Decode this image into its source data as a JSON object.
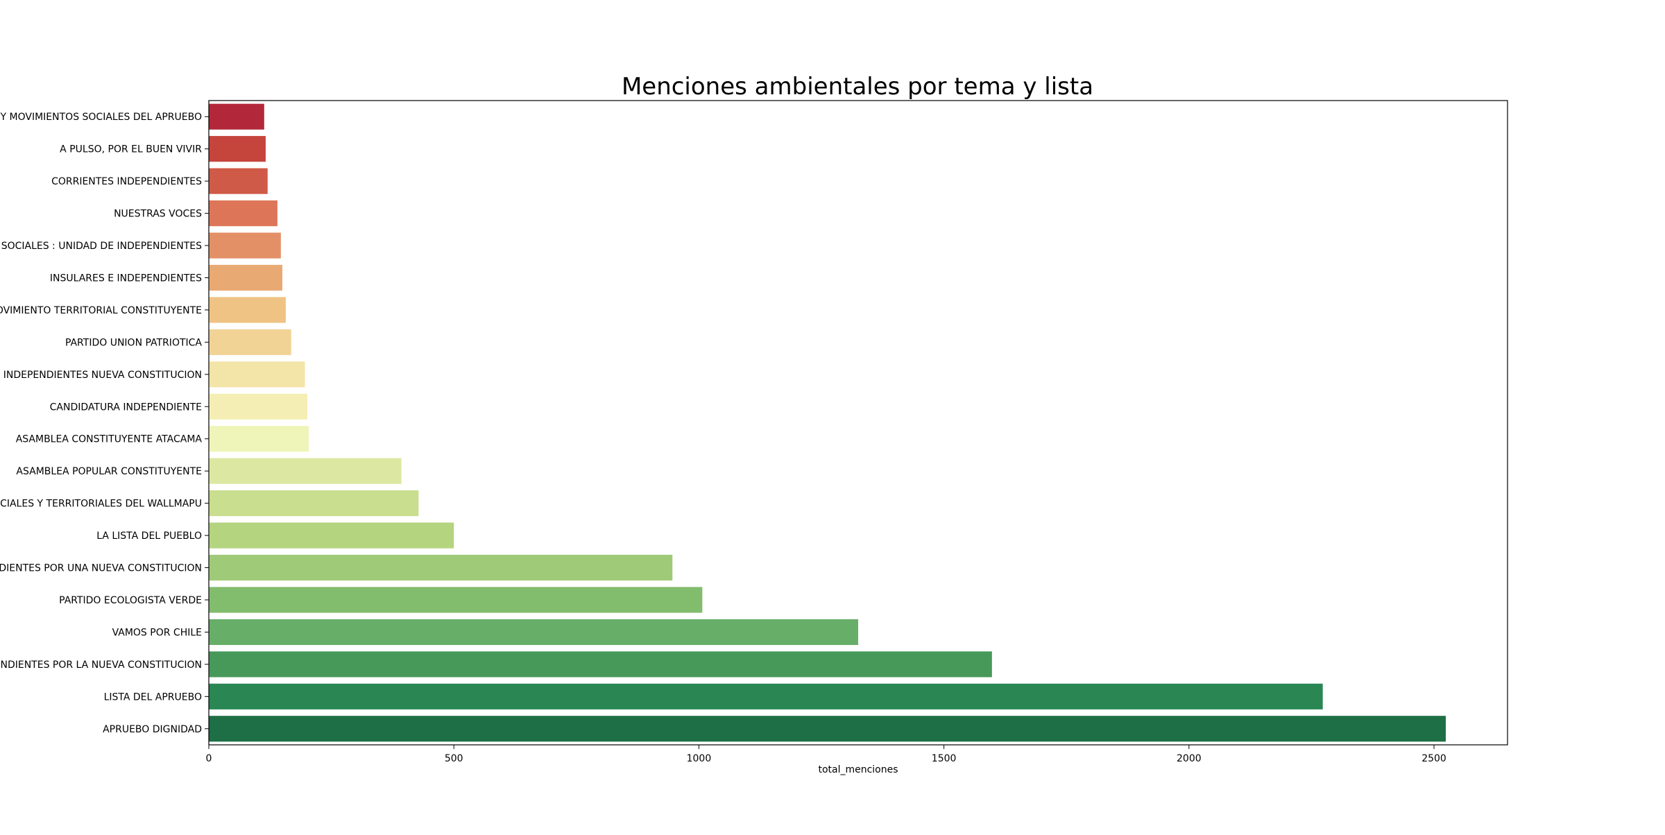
{
  "chart_data": {
    "type": "bar",
    "orientation": "horizontal",
    "title": "Menciones ambientales por tema y lista",
    "xlabel": "total_menciones",
    "ylabel": "",
    "xlim": [
      0,
      2650
    ],
    "xticks": [
      0,
      500,
      1000,
      1500,
      2000,
      2500
    ],
    "grid": false,
    "legend": "none",
    "palette": "RdYlGn",
    "categories": [
      "Y MOVIMIENTOS SOCIALES DEL APRUEBO",
      "A PULSO, POR EL BUEN VIVIR",
      "CORRIENTES INDEPENDIENTES",
      "NUESTRAS VOCES",
      "SOCIALES : UNIDAD DE INDEPENDIENTES",
      "INSULARES E INDEPENDIENTES",
      "OVIMIENTO TERRITORIAL CONSTITUYENTE",
      "PARTIDO UNION PATRIOTICA",
      "INDEPENDIENTES NUEVA CONSTITUCION",
      "CANDIDATURA INDEPENDIENTE",
      "ASAMBLEA CONSTITUYENTE ATACAMA",
      "ASAMBLEA POPULAR CONSTITUYENTE",
      "CIALES Y TERRITORIALES DEL WALLMAPU",
      "LA LISTA DEL PUEBLO",
      "DIENTES POR UNA NUEVA CONSTITUCION",
      "PARTIDO ECOLOGISTA VERDE",
      "VAMOS POR CHILE",
      "NDIENTES POR LA NUEVA CONSTITUCION",
      "LISTA DEL APRUEBO",
      "APRUEBO DIGNIDAD"
    ],
    "values": [
      113,
      116,
      120,
      140,
      147,
      150,
      157,
      168,
      196,
      201,
      204,
      393,
      428,
      500,
      946,
      1007,
      1325,
      1598,
      2273,
      2524
    ],
    "colors": [
      "#b2283a",
      "#c5443c",
      "#d05a48",
      "#dd7658",
      "#e39066",
      "#e9a972",
      "#eec384",
      "#f1d396",
      "#f3e4a8",
      "#f5eeb4",
      "#eff4b8",
      "#dce8a2",
      "#c9de8e",
      "#b5d47f",
      "#9fca77",
      "#82bc6d",
      "#67ae68",
      "#47995a",
      "#2a8754",
      "#1e6f45"
    ]
  }
}
